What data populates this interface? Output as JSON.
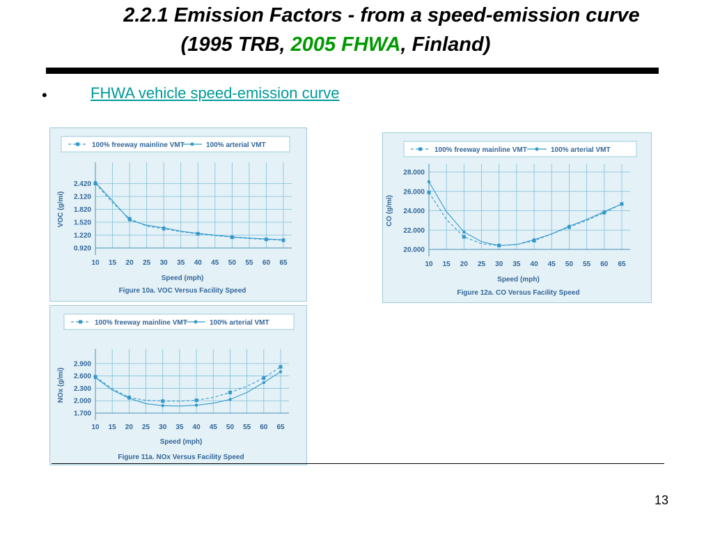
{
  "title_line1": "2.2.1  Emission Factors - from a speed-emission curve",
  "title_line2_pre": "(1995 TRB, ",
  "title_line2_green": "2005 FHWA",
  "title_line2_post": ", Finland)",
  "bullet_symbol": "•",
  "bullet_text": "FHWA vehicle speed-emission curve",
  "page_number": "13",
  "colors": {
    "accent_green": "#009900",
    "link_teal": "#009999",
    "chart_blue": "#3399cc",
    "panel_bg": "#e4f1f6",
    "label_blue": "#336699"
  },
  "chart_data": [
    {
      "id": "voc",
      "type": "line",
      "title": "Figure 10a. VOC Versus Facility Speed",
      "xlabel": "Speed (mph)",
      "ylabel": "VOC (g/mi)",
      "x": [
        10,
        15,
        20,
        25,
        30,
        35,
        40,
        45,
        50,
        55,
        60,
        65
      ],
      "xticks": [
        "10",
        "15",
        "20",
        "25",
        "30",
        "35",
        "40",
        "45",
        "50",
        "55",
        "60",
        "65"
      ],
      "yticks": [
        "0.920",
        "1.220",
        "1.520",
        "1.820",
        "2.120",
        "2.420"
      ],
      "ylim": [
        0.92,
        2.72
      ],
      "legend_position": "top",
      "grid": true,
      "series": [
        {
          "name": "100% freeway mainline VMT",
          "style": "dashed",
          "marker": "square",
          "values": [
            2.42,
            1.98,
            1.6,
            1.43,
            1.37,
            1.3,
            1.25,
            1.21,
            1.17,
            1.14,
            1.12,
            1.1
          ]
        },
        {
          "name": "100% arterial VMT",
          "style": "solid",
          "marker": "diamond",
          "values": [
            2.45,
            2.02,
            1.57,
            1.45,
            1.39,
            1.31,
            1.26,
            1.22,
            1.18,
            1.15,
            1.13,
            1.11
          ]
        }
      ]
    },
    {
      "id": "co",
      "type": "line",
      "title": "Figure 12a. CO  Versus Facility Speed",
      "xlabel": "Speed (mph)",
      "ylabel": "CO  (g/mi)",
      "x": [
        10,
        15,
        20,
        25,
        30,
        35,
        40,
        45,
        50,
        55,
        60,
        65
      ],
      "xticks": [
        "10",
        "15",
        "20",
        "25",
        "30",
        "35",
        "40",
        "45",
        "50",
        "55",
        "60",
        "65"
      ],
      "yticks": [
        "20.000",
        "22.000",
        "24.000",
        "26.000",
        "28.000"
      ],
      "ylim": [
        20.0,
        28.0
      ],
      "legend_position": "top",
      "grid": true,
      "series": [
        {
          "name": "100% freeway mainline VMT",
          "style": "dashed",
          "marker": "square",
          "values": [
            25.9,
            23.1,
            21.3,
            20.6,
            20.4,
            20.5,
            20.9,
            21.6,
            22.3,
            23.0,
            23.8,
            24.7
          ]
        },
        {
          "name": "100% arterial VMT",
          "style": "solid",
          "marker": "diamond",
          "values": [
            27.0,
            23.9,
            21.8,
            20.8,
            20.4,
            20.5,
            21.0,
            21.6,
            22.4,
            23.1,
            23.9,
            24.7
          ]
        }
      ]
    },
    {
      "id": "nox",
      "type": "line",
      "title": "Figure 11a. NOx Versus Facility Speed",
      "xlabel": "Speed (mph)",
      "ylabel": "NOx (g/mi)",
      "x": [
        10,
        15,
        20,
        25,
        30,
        35,
        40,
        45,
        50,
        55,
        60,
        65
      ],
      "xticks": [
        "10",
        "15",
        "20",
        "25",
        "30",
        "35",
        "40",
        "45",
        "50",
        "55",
        "60",
        "65"
      ],
      "yticks": [
        "1.700",
        "2.000",
        "2.300",
        "2.600",
        "2.900"
      ],
      "ylim": [
        1.7,
        3.05
      ],
      "legend_position": "top",
      "grid": true,
      "series": [
        {
          "name": "100% freeway mainline VMT",
          "style": "dashed",
          "marker": "square",
          "values": [
            2.58,
            2.29,
            2.08,
            2.01,
            1.99,
            1.99,
            2.01,
            2.08,
            2.2,
            2.35,
            2.55,
            2.82
          ]
        },
        {
          "name": "100% arterial VMT",
          "style": "solid",
          "marker": "diamond",
          "values": [
            2.56,
            2.26,
            2.06,
            1.93,
            1.88,
            1.87,
            1.89,
            1.94,
            2.03,
            2.2,
            2.44,
            2.7
          ]
        }
      ]
    }
  ]
}
